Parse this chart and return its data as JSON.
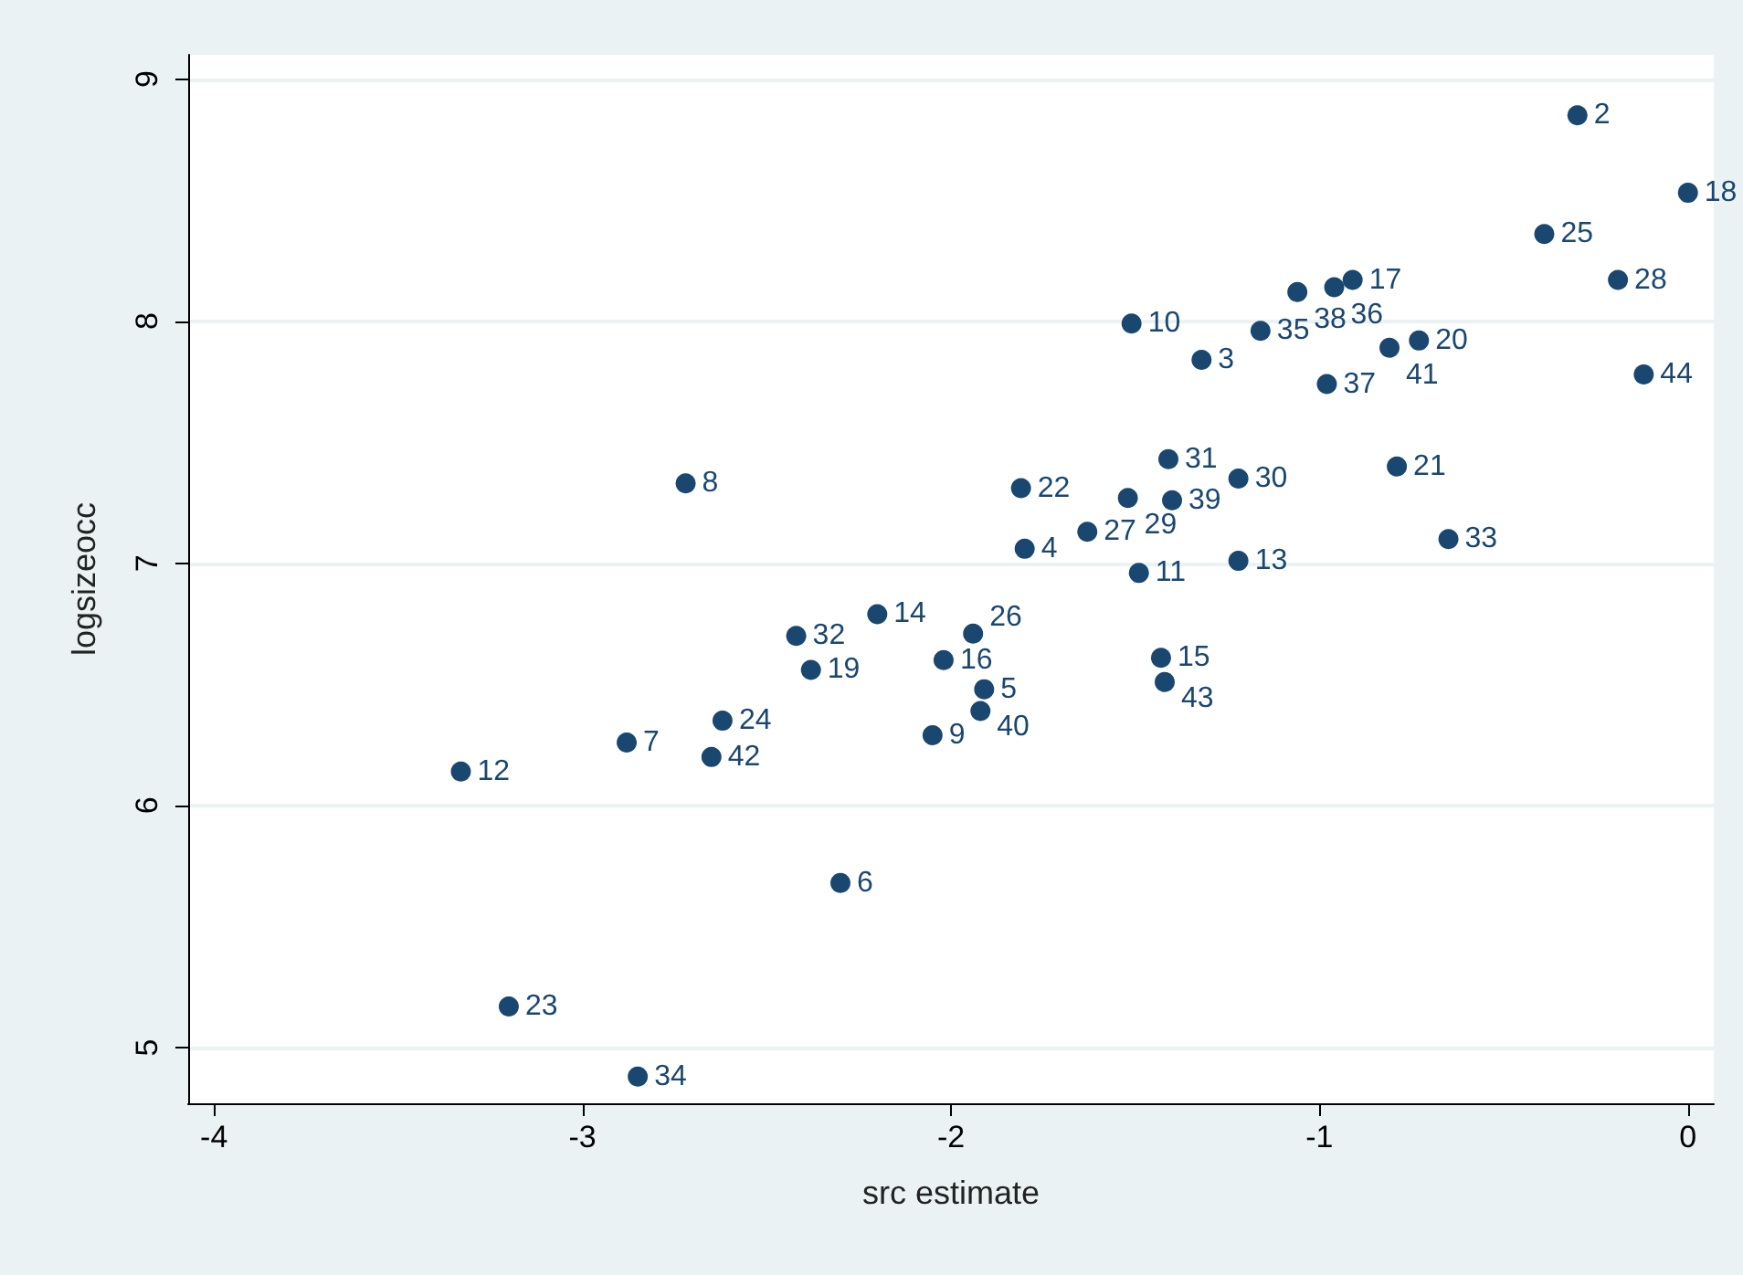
{
  "chart_data": {
    "type": "scatter",
    "xlabel": "src estimate",
    "ylabel": "logsizeocc",
    "xlim": [
      -4.07,
      0.07
    ],
    "xticks": [
      -4,
      -3,
      -2,
      -1,
      0
    ],
    "ylim": [
      4.77,
      9.1
    ],
    "yticks": [
      5,
      6,
      7,
      8,
      9
    ],
    "grid": "y",
    "marker": "circle",
    "series": [
      {
        "color": "#1a476f",
        "x": [
          -0.3,
          -1.32,
          -1.8,
          -1.91,
          -2.3,
          -2.88,
          -2.72,
          -2.05,
          -1.51,
          -1.49,
          -3.33,
          -1.22,
          -2.2,
          -1.43,
          -2.02,
          -0.91,
          0,
          -2.38,
          -0.73,
          -0.79,
          -1.81,
          -3.2,
          -2.62,
          -0.39,
          -1.94,
          -1.63,
          -0.19,
          -1.52,
          -1.22,
          -1.41,
          -2.42,
          -0.65,
          -2.85,
          -1.16,
          -0.96,
          -0.98,
          -1.06,
          -1.4,
          -1.92,
          -0.81,
          -2.65,
          -1.42,
          -0.12
        ],
        "values": [
          8.85,
          7.84,
          7.06,
          6.48,
          5.68,
          6.26,
          7.33,
          6.29,
          7.99,
          6.96,
          6.14,
          7.01,
          6.79,
          6.61,
          6.6,
          8.17,
          8.53,
          6.56,
          7.92,
          7.4,
          7.31,
          5.17,
          6.35,
          8.36,
          6.71,
          7.13,
          8.17,
          7.27,
          7.35,
          7.43,
          6.7,
          7.1,
          4.88,
          7.96,
          8.14,
          7.74,
          8.12,
          7.26,
          6.39,
          7.89,
          6.2,
          6.51,
          7.78
        ]
      }
    ],
    "annotations": [
      {
        "text": "2",
        "x": -0.3,
        "y": 8.85
      },
      {
        "text": "3",
        "x": -1.32,
        "y": 7.84
      },
      {
        "text": "4",
        "x": -1.8,
        "y": 7.06
      },
      {
        "text": "5",
        "x": -1.91,
        "y": 6.48
      },
      {
        "text": "6",
        "x": -2.3,
        "y": 5.68
      },
      {
        "text": "7",
        "x": -2.88,
        "y": 6.26
      },
      {
        "text": "8",
        "x": -2.72,
        "y": 7.33
      },
      {
        "text": "9",
        "x": -2.05,
        "y": 6.29
      },
      {
        "text": "10",
        "x": -1.51,
        "y": 7.99
      },
      {
        "text": "11",
        "x": -1.49,
        "y": 6.96
      },
      {
        "text": "12",
        "x": -3.33,
        "y": 6.14
      },
      {
        "text": "13",
        "x": -1.22,
        "y": 7.01
      },
      {
        "text": "14",
        "x": -2.2,
        "y": 6.79
      },
      {
        "text": "15",
        "x": -1.43,
        "y": 6.61
      },
      {
        "text": "16",
        "x": -2.02,
        "y": 6.6
      },
      {
        "text": "17",
        "x": -0.91,
        "y": 8.17
      },
      {
        "text": "18",
        "x": 0,
        "y": 8.53
      },
      {
        "text": "19",
        "x": -2.38,
        "y": 6.56
      },
      {
        "text": "20",
        "x": -0.73,
        "y": 7.92
      },
      {
        "text": "21",
        "x": -0.79,
        "y": 7.4
      },
      {
        "text": "22",
        "x": -1.81,
        "y": 7.31
      },
      {
        "text": "23",
        "x": -3.2,
        "y": 5.17
      },
      {
        "text": "24",
        "x": -2.62,
        "y": 6.35
      },
      {
        "text": "25",
        "x": -0.39,
        "y": 8.36
      },
      {
        "text": "26",
        "x": -1.94,
        "y": 6.71
      },
      {
        "text": "27",
        "x": -1.63,
        "y": 7.13
      },
      {
        "text": "28",
        "x": -0.19,
        "y": 8.17
      },
      {
        "text": "29",
        "x": -1.52,
        "y": 7.27
      },
      {
        "text": "30",
        "x": -1.22,
        "y": 7.35
      },
      {
        "text": "31",
        "x": -1.41,
        "y": 7.43
      },
      {
        "text": "32",
        "x": -2.42,
        "y": 6.7
      },
      {
        "text": "33",
        "x": -0.65,
        "y": 7.1
      },
      {
        "text": "34",
        "x": -2.85,
        "y": 4.88
      },
      {
        "text": "35",
        "x": -1.16,
        "y": 7.96
      },
      {
        "text": "36",
        "x": -0.96,
        "y": 8.14
      },
      {
        "text": "37",
        "x": -0.98,
        "y": 7.74
      },
      {
        "text": "38",
        "x": -1.06,
        "y": 8.12
      },
      {
        "text": "39",
        "x": -1.4,
        "y": 7.26
      },
      {
        "text": "40",
        "x": -1.92,
        "y": 6.39
      },
      {
        "text": "41",
        "x": -0.81,
        "y": 7.89
      },
      {
        "text": "42",
        "x": -2.65,
        "y": 6.2
      },
      {
        "text": "43",
        "x": -1.42,
        "y": 6.51
      },
      {
        "text": "44",
        "x": -0.12,
        "y": 7.78
      }
    ]
  }
}
